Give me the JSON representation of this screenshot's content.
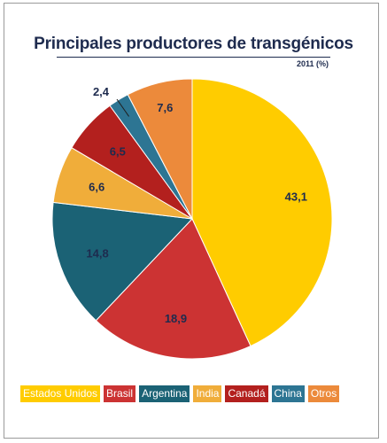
{
  "chart_data": {
    "type": "pie",
    "title": "Principales productores de transgénicos",
    "subtitle": "2011 (%)",
    "slices": [
      {
        "name": "Estados Unidos",
        "value": 43.1,
        "label": "43,1",
        "color": "#ffcc00"
      },
      {
        "name": "Brasil",
        "value": 18.9,
        "label": "18,9",
        "color": "#cc3333"
      },
      {
        "name": "Argentina",
        "value": 14.8,
        "label": "14,8",
        "color": "#1b6275"
      },
      {
        "name": "India",
        "value": 6.6,
        "label": "6,6",
        "color": "#f0ad3a"
      },
      {
        "name": "Canadá",
        "value": 6.5,
        "label": "6,5",
        "color": "#b3201e"
      },
      {
        "name": "China",
        "value": 2.4,
        "label": "2,4",
        "color": "#2d7593"
      },
      {
        "name": "Otros",
        "value": 7.6,
        "label": "7,6",
        "color": "#ec8a3b"
      }
    ],
    "legend_position": "bottom"
  }
}
